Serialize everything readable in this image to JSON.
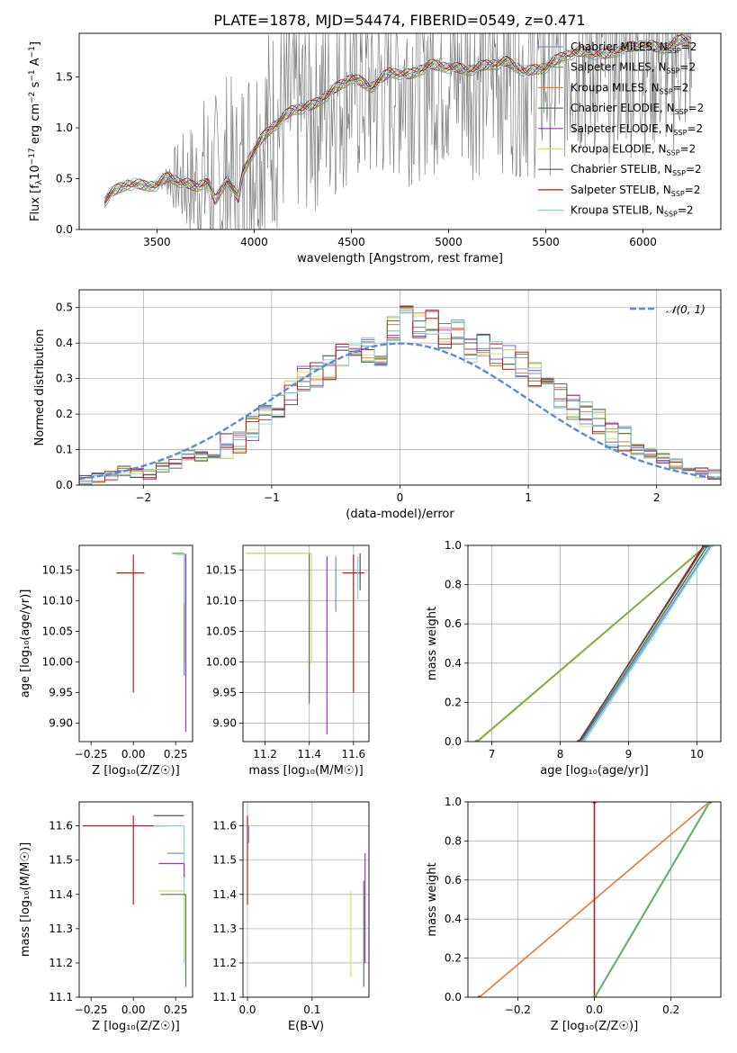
{
  "title": "PLATE=1878, MJD=54474, FIBERID=0549, z=0.471",
  "models": [
    {
      "name": "Chabrier MILES",
      "color": "#6f94d6"
    },
    {
      "name": "Salpeter MILES",
      "color": "#6aa84f"
    },
    {
      "name": "Kroupa MILES",
      "color": "#e07b39"
    },
    {
      "name": "Chabrier ELODIE",
      "color": "#4f7f4a"
    },
    {
      "name": "Salpeter ELODIE",
      "color": "#9b30c8"
    },
    {
      "name": "Kroupa ELODIE",
      "color": "#d4e060"
    },
    {
      "name": "Chabrier STELIB",
      "color": "#555555"
    },
    {
      "name": "Salpeter STELIB",
      "color": "#c01818"
    },
    {
      "name": "Kroupa STELIB",
      "color": "#7fd3e0"
    }
  ],
  "legend_suffix": ", N",
  "legend_sub": "SSP",
  "legend_tail": "=2",
  "data_color": "#808080",
  "chart_data": [
    {
      "id": "spectrum",
      "type": "line",
      "xlabel": "wavelength [Angstrom, rest frame]",
      "ylabel_parts": [
        "Flux [f",
        "λ",
        "10",
        "−17",
        " erg cm",
        "−2",
        " s",
        "−1",
        " A",
        "−1",
        "]"
      ],
      "xlim": [
        3100,
        6400
      ],
      "ylim": [
        0,
        1.93
      ],
      "xticks": [
        3500,
        4000,
        4500,
        5000,
        5500,
        6000
      ],
      "yticks": [
        0.0,
        0.5,
        1.0,
        1.5
      ],
      "legend_loc": "upper right",
      "continuum_x": [
        3150,
        3220,
        3230,
        3260,
        3300,
        3350,
        3400,
        3450,
        3500,
        3560,
        3620,
        3700,
        3760,
        3800,
        3860,
        3920,
        3940,
        3980,
        4050,
        4100,
        4200,
        4300,
        4400,
        4500,
        4600,
        4700,
        4800,
        4900,
        5000,
        5100,
        5200,
        5300,
        5400,
        5500,
        5600,
        5700,
        5800,
        5900,
        6000,
        6100,
        6200,
        6250
      ],
      "continuum_y": [
        0,
        0,
        0.28,
        0.35,
        0.4,
        0.45,
        0.44,
        0.43,
        0.44,
        0.52,
        0.47,
        0.42,
        0.48,
        0.28,
        0.5,
        0.3,
        0.55,
        0.72,
        0.92,
        1.02,
        1.18,
        1.22,
        1.36,
        1.5,
        1.4,
        1.55,
        1.52,
        1.62,
        1.6,
        1.57,
        1.62,
        1.65,
        1.55,
        1.6,
        1.72,
        1.75,
        1.72,
        1.78,
        1.82,
        1.78,
        1.87,
        1.85
      ]
    },
    {
      "id": "residuals",
      "type": "histogram",
      "xlabel": "(data-model)/error",
      "ylabel": "Normed distribution",
      "xlim": [
        -2.5,
        2.5
      ],
      "ylim": [
        0,
        0.55
      ],
      "xticks": [
        -2,
        -1,
        0,
        1,
        2
      ],
      "yticks": [
        0.0,
        0.1,
        0.2,
        0.3,
        0.4,
        0.5
      ],
      "bin_width": 0.1,
      "bin_start": -2.5,
      "values": [
        0.015,
        0.02,
        0.025,
        0.04,
        0.035,
        0.03,
        0.05,
        0.06,
        0.085,
        0.08,
        0.09,
        0.11,
        0.12,
        0.16,
        0.19,
        0.22,
        0.26,
        0.3,
        0.31,
        0.33,
        0.37,
        0.4,
        0.38,
        0.35,
        0.44,
        0.47,
        0.45,
        0.46,
        0.42,
        0.43,
        0.38,
        0.39,
        0.37,
        0.36,
        0.34,
        0.31,
        0.28,
        0.25,
        0.22,
        0.2,
        0.18,
        0.14,
        0.13,
        0.1,
        0.09,
        0.075,
        0.06,
        0.05,
        0.035,
        0.03
      ],
      "normal_label": "𝒩(0, 1)",
      "normal_color": "#5b8ad8"
    },
    {
      "id": "age-vs-Z",
      "type": "scatter",
      "xlabel": "Z [log₁₀(Z/Z☉)]",
      "ylabel": "age  [log₁₀(age/yr)]",
      "xlim": [
        -0.32,
        0.35
      ],
      "ylim": [
        9.87,
        10.19
      ],
      "xticks": [
        -0.25,
        0.0,
        0.25
      ],
      "yticks": [
        9.9,
        9.95,
        10.0,
        10.05,
        10.1,
        10.15
      ],
      "points": [
        {
          "model": 7,
          "x": 0.0,
          "y": 10.145,
          "xerr": 0.1,
          "yerr": [
            0.195,
            0.03
          ]
        },
        {
          "model": 0,
          "x": 0.3,
          "y": 10.177,
          "xerr": 0.07,
          "yerr": [
            0.2,
            0.0
          ]
        },
        {
          "model": 1,
          "x": 0.3,
          "y": 10.177,
          "xerr": 0.07,
          "yerr": [
            0.18,
            0.0
          ]
        },
        {
          "model": 5,
          "x": 0.31,
          "y": 10.176,
          "xerr": 0.06,
          "yerr": [
            0.1,
            0.0
          ]
        },
        {
          "model": 4,
          "x": 0.31,
          "y": 10.176,
          "xerr": 0.0,
          "yerr": [
            0.29,
            0.0
          ]
        },
        {
          "model": 8,
          "x": 0.3,
          "y": 10.175,
          "xerr": 0.05,
          "yerr": [
            0.08,
            0.0
          ]
        }
      ]
    },
    {
      "id": "age-vs-mass",
      "type": "scatter",
      "xlabel": "mass [log₁₀(M/M☉)]",
      "ylabel": "",
      "xlim": [
        11.1,
        11.67
      ],
      "ylim": [
        9.87,
        10.19
      ],
      "xticks": [
        11.2,
        11.4,
        11.6
      ],
      "yticks": [
        9.9,
        9.95,
        10.0,
        10.05,
        10.1,
        10.15
      ],
      "points": [
        {
          "model": 7,
          "x": 11.6,
          "y": 10.145,
          "xerr": 0.05,
          "yerr": [
            0.195,
            0.03
          ]
        },
        {
          "model": 3,
          "x": 11.4,
          "y": 10.177,
          "xerr": 0.28,
          "yerr": [
            0.245,
            0.0
          ]
        },
        {
          "model": 5,
          "x": 11.41,
          "y": 10.177,
          "xerr": 0.3,
          "yerr": [
            0.18,
            0.0
          ]
        },
        {
          "model": 4,
          "x": 11.48,
          "y": 10.172,
          "xerr": 0.0,
          "yerr": [
            0.29,
            0.0
          ]
        },
        {
          "model": 0,
          "x": 11.52,
          "y": 10.172,
          "xerr": 0.0,
          "yerr": [
            0.09,
            0.0
          ]
        },
        {
          "model": 6,
          "x": 11.63,
          "y": 10.177,
          "xerr": 0.0,
          "yerr": [
            0.06,
            0.0
          ]
        },
        {
          "model": 8,
          "x": 11.62,
          "y": 10.172,
          "xerr": 0.0,
          "yerr": [
            0.07,
            0.0
          ]
        }
      ]
    },
    {
      "id": "weight-vs-age",
      "type": "line",
      "xlabel": "age  [log₁₀(age/yr)]",
      "ylabel": "mass weight",
      "xlim": [
        6.65,
        10.35
      ],
      "ylim": [
        0,
        1.0
      ],
      "xticks": [
        7,
        8,
        9,
        10
      ],
      "yticks": [
        0.0,
        0.2,
        0.4,
        0.6,
        0.8,
        1.0
      ],
      "lines": [
        {
          "model": 5,
          "x": [
            6.8,
            10.15
          ],
          "y": [
            0.0,
            1.0
          ]
        },
        {
          "model": 1,
          "x": [
            6.78,
            10.14
          ],
          "y": [
            0.0,
            1.0
          ]
        },
        {
          "model": 3,
          "x": [
            8.3,
            10.16
          ],
          "y": [
            0.0,
            1.0
          ]
        },
        {
          "model": 7,
          "x": [
            8.28,
            10.1
          ],
          "y": [
            0.0,
            1.0
          ]
        },
        {
          "model": 6,
          "x": [
            8.27,
            10.12
          ],
          "y": [
            0.0,
            1.0
          ]
        },
        {
          "model": 0,
          "x": [
            8.32,
            10.2
          ],
          "y": [
            0.0,
            1.0
          ]
        },
        {
          "model": 8,
          "x": [
            8.35,
            10.22
          ],
          "y": [
            0.0,
            1.0
          ]
        }
      ]
    },
    {
      "id": "mass-vs-Z",
      "type": "scatter",
      "xlabel": "Z [log₁₀(Z/Z☉)]",
      "ylabel": "mass [log₁₀(M/M☉)]",
      "xlim": [
        -0.32,
        0.35
      ],
      "ylim": [
        11.1,
        11.67
      ],
      "xticks": [
        -0.25,
        0.0,
        0.25
      ],
      "yticks": [
        11.1,
        11.2,
        11.3,
        11.4,
        11.5,
        11.6
      ],
      "points": [
        {
          "model": 7,
          "x": 0.0,
          "y": 11.6,
          "xerr": 0.3,
          "yerr": [
            0.23,
            0.03
          ]
        },
        {
          "model": 6,
          "x": 0.3,
          "y": 11.63,
          "xerr": 0.18,
          "yerr": [
            0.0,
            0.0
          ]
        },
        {
          "model": 8,
          "x": 0.3,
          "y": 11.6,
          "xerr": 0.18,
          "yerr": [
            0.4,
            0.0
          ]
        },
        {
          "model": 0,
          "x": 0.3,
          "y": 11.52,
          "xerr": 0.1,
          "yerr": [
            0.0,
            0.0
          ]
        },
        {
          "model": 4,
          "x": 0.3,
          "y": 11.49,
          "xerr": 0.15,
          "yerr": [
            0.04,
            0.0
          ]
        },
        {
          "model": 5,
          "x": 0.3,
          "y": 11.41,
          "xerr": 0.15,
          "yerr": [
            0.2,
            0.0
          ]
        },
        {
          "model": 3,
          "x": 0.31,
          "y": 11.4,
          "xerr": 0.15,
          "yerr": [
            0.27,
            0.0
          ]
        }
      ]
    },
    {
      "id": "mass-vs-EBV",
      "type": "scatter",
      "xlabel": "E(B-V)",
      "ylabel": "",
      "xlim": [
        -0.007,
        0.188
      ],
      "ylim": [
        11.1,
        11.67
      ],
      "xticks": [
        0.0,
        0.1
      ],
      "yticks": [
        11.1,
        11.2,
        11.3,
        11.4,
        11.5,
        11.6
      ],
      "points": [
        {
          "model": 7,
          "x": 0.0,
          "y": 11.6,
          "xerr": 0.0,
          "yerr": [
            0.23,
            0.03
          ]
        },
        {
          "model": 5,
          "x": 0.16,
          "y": 11.41,
          "xerr": 0.0,
          "yerr": [
            0.25,
            0.0
          ]
        },
        {
          "model": 3,
          "x": 0.18,
          "y": 11.44,
          "xerr": 0.0,
          "yerr": [
            0.31,
            0.0
          ]
        },
        {
          "model": 4,
          "x": 0.182,
          "y": 11.52,
          "xerr": 0.0,
          "yerr": [
            0.32,
            0.0
          ]
        },
        {
          "model": 0,
          "x": 0.002,
          "y": 11.6,
          "xerr": 0.0,
          "yerr": [
            0.05,
            0.0
          ]
        }
      ]
    },
    {
      "id": "weight-vs-Z",
      "type": "line",
      "xlabel": "Z [log₁₀(Z/Z☉)]",
      "ylabel": "mass weight",
      "xlim": [
        -0.33,
        0.33
      ],
      "ylim": [
        0,
        1.0
      ],
      "xticks": [
        -0.2,
        0.0,
        0.2
      ],
      "yticks": [
        0.0,
        0.2,
        0.4,
        0.6,
        0.8,
        1.0
      ],
      "lines": [
        {
          "model": 2,
          "x": [
            -0.3,
            0.3
          ],
          "y": [
            0.0,
            1.0
          ]
        },
        {
          "model": 7,
          "x": [
            0.0,
            0.0
          ],
          "y": [
            0.0,
            1.0
          ]
        },
        {
          "model": 8,
          "x": [
            0.0,
            0.3
          ],
          "y": [
            0.0,
            1.0
          ]
        },
        {
          "model": 1,
          "x": [
            0.002,
            0.302
          ],
          "y": [
            0.0,
            1.0
          ]
        }
      ]
    }
  ]
}
